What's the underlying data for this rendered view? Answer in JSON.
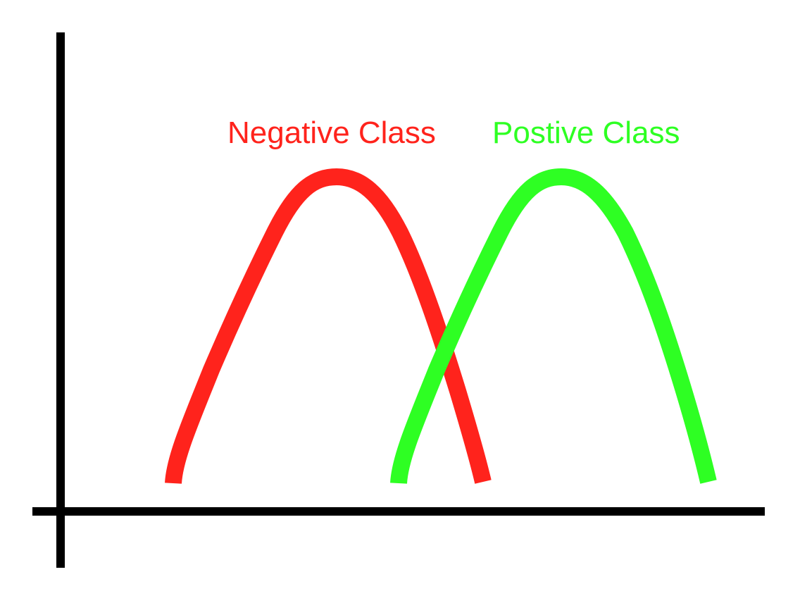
{
  "labels": {
    "negative": "Negative Class",
    "positive": "Postive Class"
  },
  "colors": {
    "negative": "#ff231c",
    "positive": "#2eff23",
    "axis": "#000000",
    "background": "#ffffff"
  }
}
